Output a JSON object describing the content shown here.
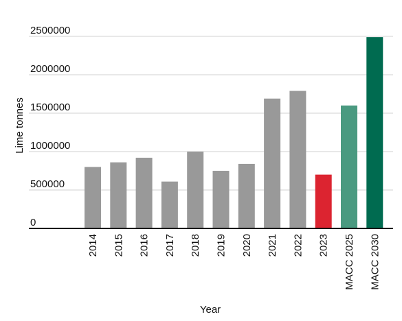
{
  "chart_data": {
    "type": "bar",
    "categories": [
      "2014",
      "2015",
      "2016",
      "2017",
      "2018",
      "2019",
      "2020",
      "2021",
      "2022",
      "2023",
      "MACC 2025",
      "MACC 2030"
    ],
    "values": [
      800000,
      860000,
      920000,
      610000,
      1000000,
      750000,
      840000,
      1690000,
      1790000,
      700000,
      1600000,
      2490000
    ],
    "colors": [
      "#999999",
      "#999999",
      "#999999",
      "#999999",
      "#999999",
      "#999999",
      "#999999",
      "#999999",
      "#999999",
      "#dc2430",
      "#4a9a80",
      "#006b50"
    ],
    "xlabel": "Year",
    "ylabel": "Lime tonnes",
    "ylim": [
      0,
      2500000
    ],
    "yticks": [
      0,
      500000,
      1000000,
      1500000,
      2000000,
      2500000
    ],
    "ytick_labels": [
      "0",
      "500000",
      "1000000",
      "1500000",
      "2000000",
      "2500000"
    ],
    "grid": true,
    "legend": "none"
  }
}
